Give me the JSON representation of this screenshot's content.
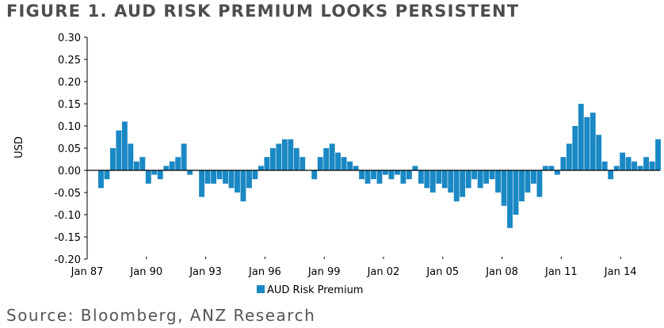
{
  "figure": {
    "title": "FIGURE 1. AUD RISK PREMIUM LOOKS PERSISTENT",
    "source": "Source: Bloomberg, ANZ Research"
  },
  "colors": {
    "series": "#1a88c4",
    "title": "#4d4d4d",
    "source": "#555555",
    "axis": "#000000"
  },
  "chart_data": {
    "type": "bar",
    "title": "FIGURE 1. AUD RISK PREMIUM LOOKS PERSISTENT",
    "xlabel": "",
    "ylabel": "USD",
    "ylim": [
      -0.2,
      0.3
    ],
    "xlim": [
      1987.0,
      2016.0
    ],
    "y_ticks": [
      "0.30",
      "0.25",
      "0.20",
      "0.15",
      "0.10",
      "0.05",
      "0.00",
      "-0.05",
      "-0.10",
      "-0.15",
      "-0.20"
    ],
    "y_tick_values": [
      0.3,
      0.25,
      0.2,
      0.15,
      0.1,
      0.05,
      0.0,
      -0.05,
      -0.1,
      -0.15,
      -0.2
    ],
    "x_ticks": [
      "Jan 87",
      "Jan 90",
      "Jan 93",
      "Jan 96",
      "Jan 99",
      "Jan 02",
      "Jan 05",
      "Jan 08",
      "Jan 11",
      "Jan 14"
    ],
    "x_tick_values": [
      1987,
      1990,
      1993,
      1996,
      1999,
      2002,
      2005,
      2008,
      2011,
      2014
    ],
    "legend": {
      "position": "bottom-center",
      "entries": [
        "AUD Risk Premium"
      ]
    },
    "grid": false,
    "series": [
      {
        "name": "AUD Risk Premium",
        "x": [
          1987.7,
          1988.0,
          1988.3,
          1988.6,
          1988.9,
          1989.2,
          1989.5,
          1989.8,
          1990.1,
          1990.4,
          1990.7,
          1991.0,
          1991.3,
          1991.6,
          1991.9,
          1992.2,
          1992.5,
          1992.8,
          1993.1,
          1993.4,
          1993.7,
          1994.0,
          1994.3,
          1994.6,
          1994.9,
          1995.2,
          1995.5,
          1995.8,
          1996.1,
          1996.4,
          1996.7,
          1997.0,
          1997.3,
          1997.6,
          1997.9,
          1998.2,
          1998.5,
          1998.8,
          1999.1,
          1999.4,
          1999.7,
          2000.0,
          2000.3,
          2000.6,
          2000.9,
          2001.2,
          2001.5,
          2001.8,
          2002.1,
          2002.4,
          2002.7,
          2003.0,
          2003.3,
          2003.6,
          2003.9,
          2004.2,
          2004.5,
          2004.8,
          2005.1,
          2005.4,
          2005.7,
          2006.0,
          2006.3,
          2006.6,
          2006.9,
          2007.2,
          2007.5,
          2007.8,
          2008.1,
          2008.4,
          2008.7,
          2009.0,
          2009.3,
          2009.6,
          2009.9,
          2010.2,
          2010.5,
          2010.8,
          2011.1,
          2011.4,
          2011.7,
          2012.0,
          2012.3,
          2012.6,
          2012.9,
          2013.2,
          2013.5,
          2013.8,
          2014.1,
          2014.4,
          2014.7,
          2015.0,
          2015.3,
          2015.6,
          2015.9
        ],
        "values": [
          -0.04,
          -0.02,
          0.05,
          0.09,
          0.11,
          0.06,
          0.02,
          0.03,
          -0.03,
          -0.01,
          -0.02,
          0.01,
          0.02,
          0.03,
          0.06,
          -0.01,
          0.0,
          -0.06,
          -0.03,
          -0.03,
          -0.02,
          -0.03,
          -0.04,
          -0.05,
          -0.07,
          -0.04,
          -0.02,
          0.01,
          0.03,
          0.05,
          0.06,
          0.07,
          0.07,
          0.05,
          0.03,
          0.0,
          -0.02,
          0.03,
          0.05,
          0.06,
          0.04,
          0.03,
          0.02,
          0.01,
          -0.02,
          -0.03,
          -0.02,
          -0.03,
          -0.01,
          -0.02,
          -0.01,
          -0.03,
          -0.02,
          0.01,
          -0.03,
          -0.04,
          -0.05,
          -0.03,
          -0.04,
          -0.05,
          -0.07,
          -0.06,
          -0.04,
          -0.02,
          -0.04,
          -0.03,
          -0.02,
          -0.05,
          -0.08,
          -0.13,
          -0.1,
          -0.07,
          -0.05,
          -0.03,
          -0.06,
          0.01,
          0.01,
          -0.01,
          0.03,
          0.06,
          0.1,
          0.15,
          0.12,
          0.13,
          0.08,
          0.02,
          -0.02,
          0.01,
          0.04,
          0.03,
          0.02,
          0.01,
          0.03,
          0.02,
          0.07
        ]
      }
    ]
  }
}
